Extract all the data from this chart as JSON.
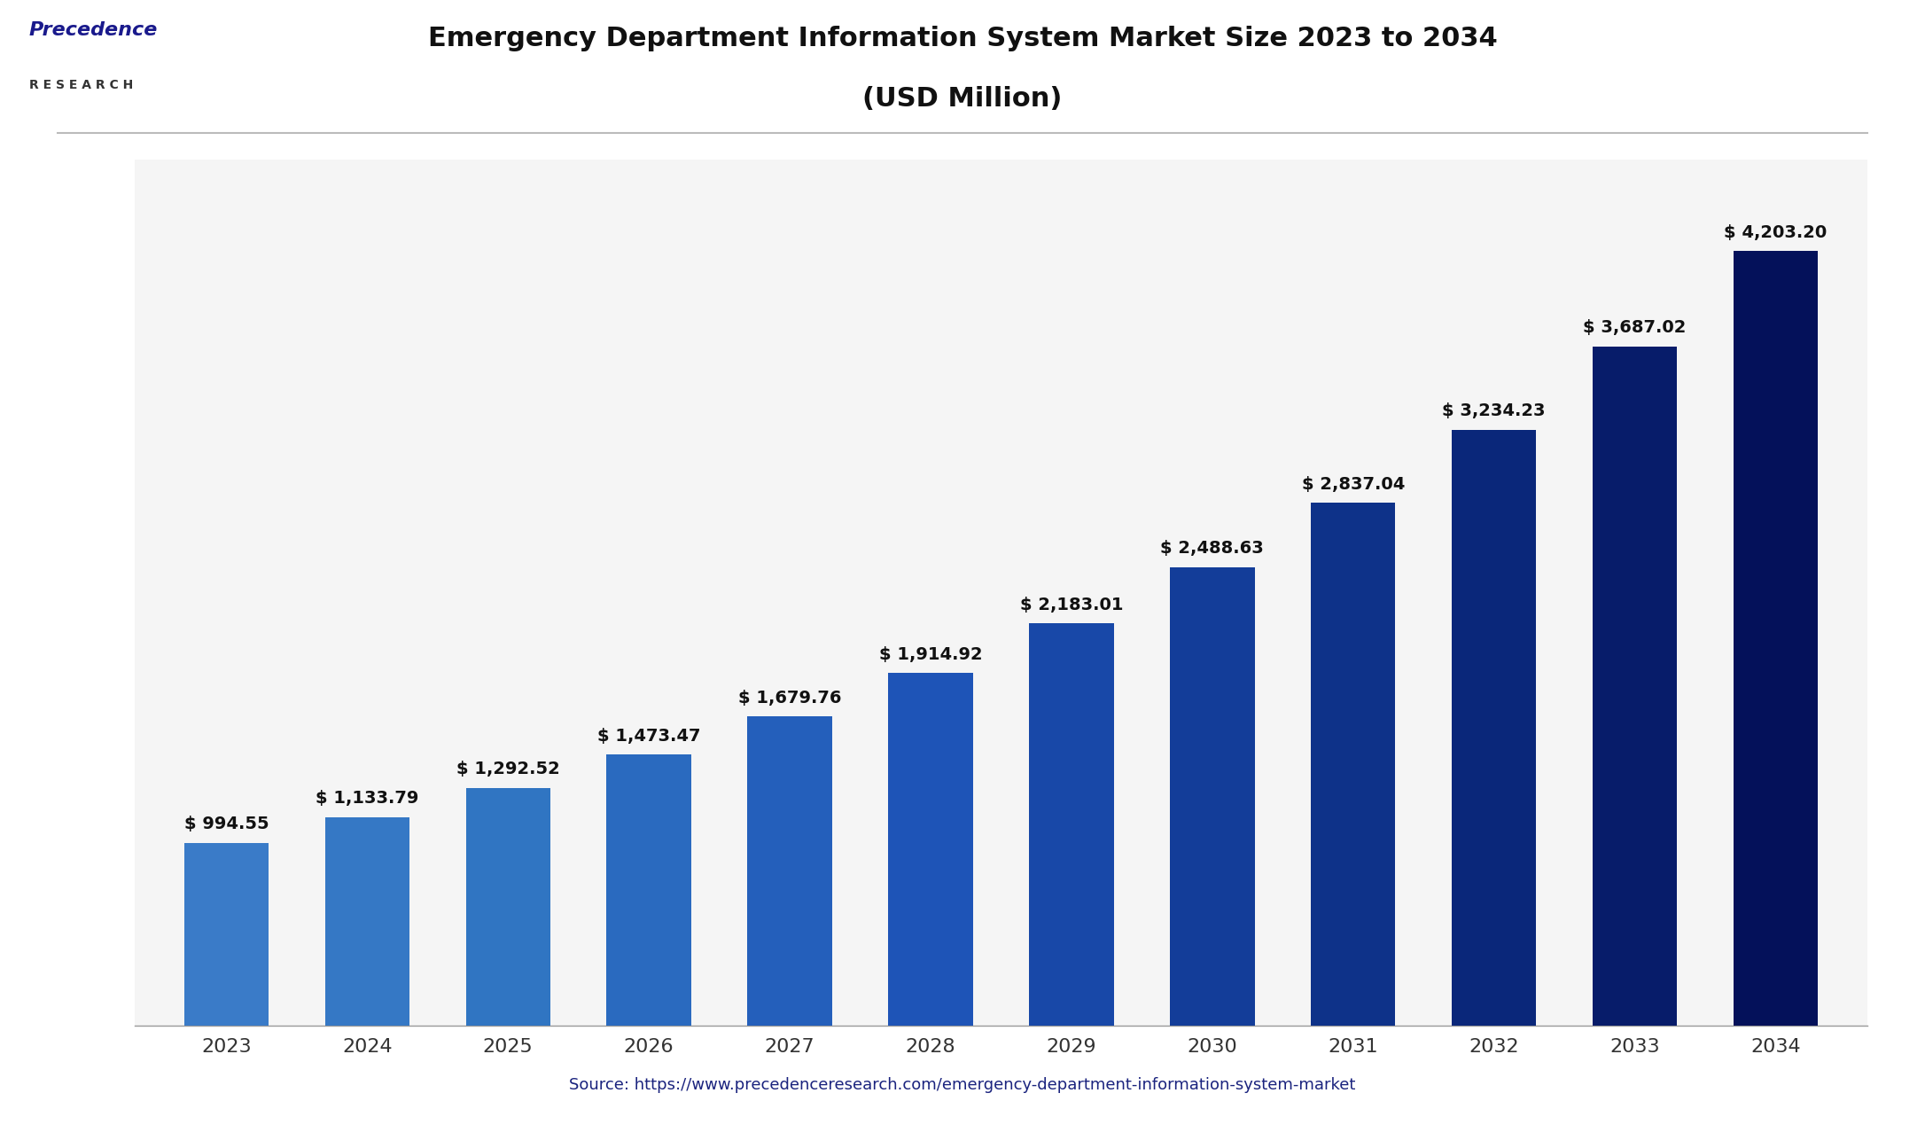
{
  "title_line1": "Emergency Department Information System Market Size 2023 to 2034",
  "title_line2": "(USD Million)",
  "source_text": "Source: https://www.precedenceresearch.com/emergency-department-information-system-market",
  "years": [
    2023,
    2024,
    2025,
    2026,
    2027,
    2028,
    2029,
    2030,
    2031,
    2032,
    2033,
    2034
  ],
  "values": [
    994.55,
    1133.79,
    1292.52,
    1473.47,
    1679.76,
    1914.92,
    2183.01,
    2488.63,
    2837.04,
    3234.23,
    3687.02,
    4203.2
  ],
  "labels": [
    "$ 994.55",
    "$ 1,133.79",
    "$ 1,292.52",
    "$ 1,473.47",
    "$ 1,679.76",
    "$ 1,914.92",
    "$ 2,183.01",
    "$ 2,488.63",
    "$ 2,837.04",
    "$ 3,234.23",
    "$ 3,687.02",
    "$ 4,203.20"
  ],
  "bar_colors": [
    "#3a7bc8",
    "#3578c5",
    "#3075c2",
    "#2a6abf",
    "#245fbb",
    "#1e54b7",
    "#1848a8",
    "#133d99",
    "#0e3289",
    "#0a277a",
    "#071c6a",
    "#04115a"
  ],
  "background_color": "#ffffff",
  "plot_bg_color": "#f5f5f5",
  "title_color": "#111111",
  "label_color": "#111111",
  "source_color": "#1a237e",
  "logo_text_color": "#1a1a8c",
  "logo_sub_color": "#333333",
  "bar_width": 0.6,
  "ylim": [
    0,
    4700
  ],
  "title_fontsize": 22,
  "label_fontsize": 14,
  "tick_fontsize": 16,
  "source_fontsize": 13,
  "logo_fontsize": 16,
  "logo_sub_fontsize": 10
}
